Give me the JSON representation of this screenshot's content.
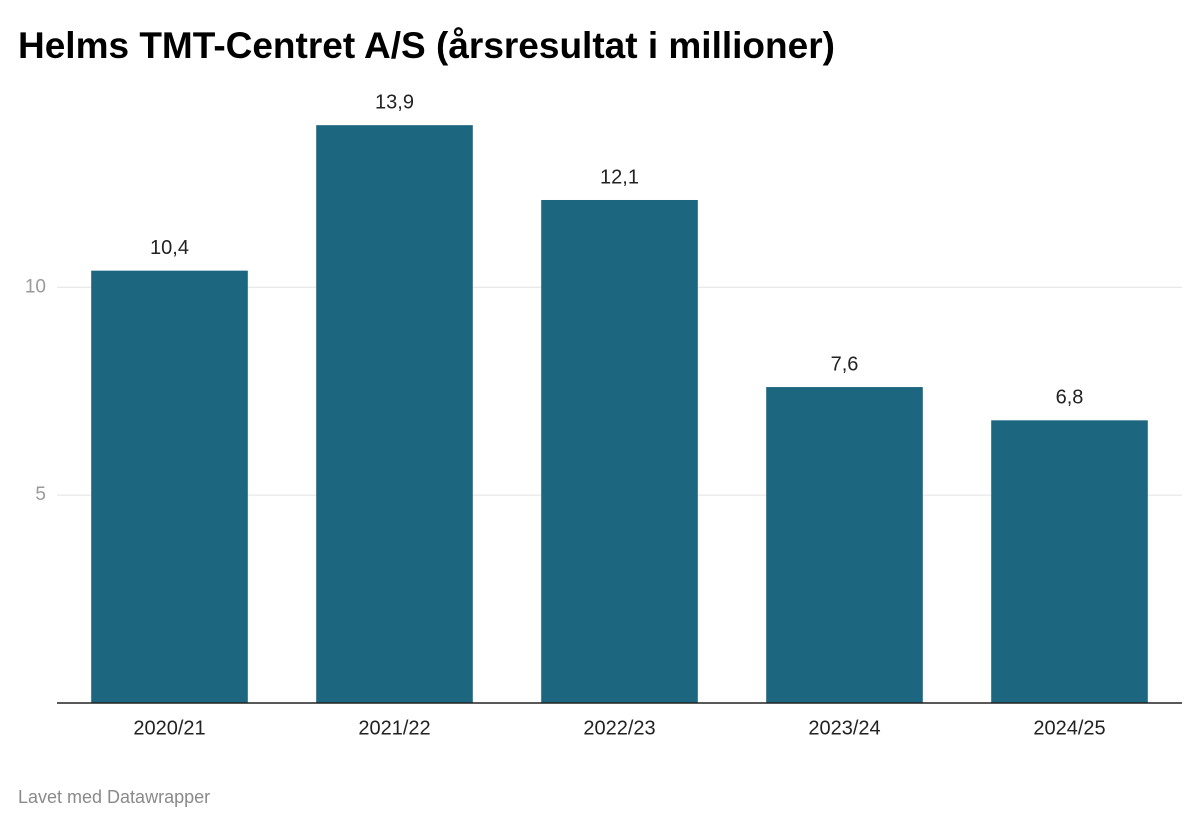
{
  "chart_data": {
    "type": "bar",
    "title": "Helms TMT-Centret A/S (årsresultat i millioner)",
    "categories": [
      "2020/21",
      "2021/22",
      "2022/23",
      "2023/24",
      "2024/25"
    ],
    "values": [
      10.4,
      13.9,
      12.1,
      7.6,
      6.8
    ],
    "value_labels": [
      "10,4",
      "13,9",
      "12,1",
      "7,6",
      "6,8"
    ],
    "color": "#1c6680",
    "ylim": [
      0,
      14
    ],
    "yticks": [
      5,
      10
    ],
    "grid": true,
    "footer": "Lavet med Datawrapper"
  }
}
